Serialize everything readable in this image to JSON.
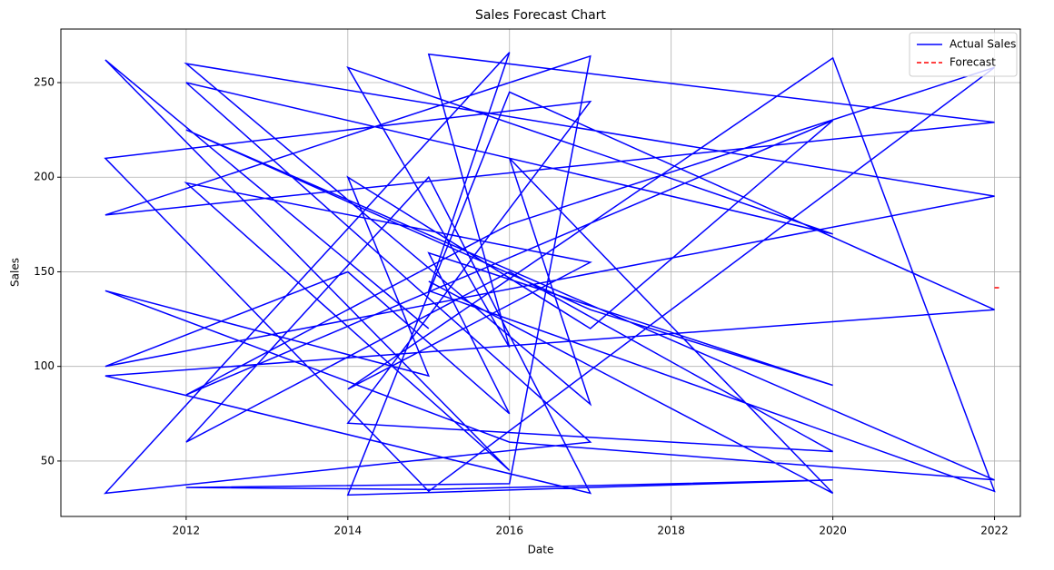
{
  "chart_data": {
    "type": "line",
    "title": "Sales Forecast Chart",
    "x_label": "Date",
    "y_label": "Sales",
    "series": [
      {
        "name": "Actual Sales",
        "color": "#0000ff",
        "dash": false,
        "x": [
          2015,
          2011,
          2016,
          2012,
          2017,
          2014,
          2020,
          2022,
          2015,
          2016,
          2011,
          2017,
          2012,
          2020,
          2014,
          2016,
          2015,
          2022,
          2011,
          2017,
          2016,
          2012,
          2015,
          2020,
          2014,
          2016,
          2022,
          2011,
          2017,
          2015,
          2012,
          2016,
          2020,
          2014,
          2017,
          2011,
          2015,
          2022,
          2016,
          2012,
          2020,
          2017,
          2014,
          2015,
          2011,
          2016,
          2022,
          2012,
          2017,
          2020,
          2015,
          2016,
          2014,
          2011,
          2022,
          2012,
          2017,
          2016,
          2020,
          2015
        ],
        "values": [
          120,
          262,
          45,
          197,
          155,
          88,
          263,
          34,
          140,
          266,
          33,
          60,
          250,
          170,
          258,
          110,
          265,
          229,
          180,
          264,
          38,
          36,
          35,
          40,
          32,
          245,
          130,
          95,
          33,
          200,
          60,
          150,
          55,
          70,
          240,
          210,
          34,
          258,
          175,
          85,
          230,
          120,
          200,
          95,
          140,
          60,
          40,
          225,
          130,
          90,
          160,
          75,
          150,
          100,
          190,
          260,
          80,
          210,
          33,
          145
        ]
      },
      {
        "name": "Forecast",
        "color": "#ff0000",
        "dash": true,
        "x": [
          2022,
          2022.06
        ],
        "values": [
          141.6,
          141.6
        ]
      }
    ],
    "xlim": [
      2010.45,
      2022.32
    ],
    "xticks": [
      2012,
      2014,
      2016,
      2018,
      2020,
      2022
    ],
    "ylim": [
      20.7,
      278.3
    ],
    "yticks": [
      50,
      100,
      150,
      200,
      250
    ],
    "grid": true,
    "legend": "upper right"
  }
}
